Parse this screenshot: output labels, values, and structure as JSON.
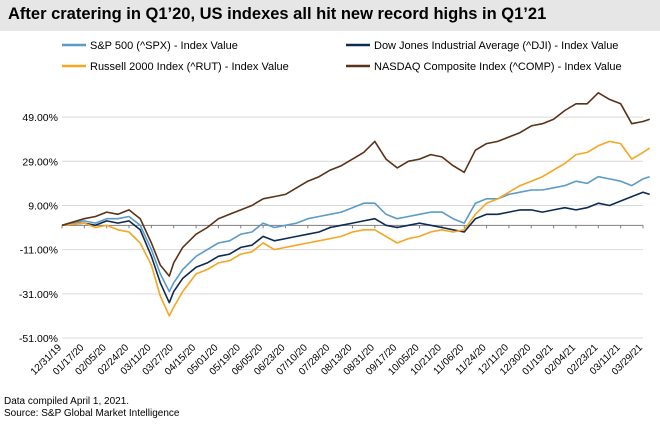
{
  "chart_data": {
    "type": "line",
    "title": "After cratering in Q1’20, US indexes all hit new record highs in Q1’21",
    "xlabel": "",
    "ylabel": "",
    "ylim": [
      -51,
      59
    ],
    "yticks": [
      -51,
      -31,
      -11,
      9,
      29,
      49
    ],
    "ytick_labels": [
      "-51.00%",
      "-31.00%",
      "-11.00%",
      "9.00%",
      "29.00%",
      "49.00%"
    ],
    "x_tick_labels": [
      "12/31/19",
      "01/17/20",
      "02/05/20",
      "02/24/20",
      "03/11/20",
      "03/27/20",
      "04/15/20",
      "05/01/20",
      "05/19/20",
      "06/05/20",
      "06/23/20",
      "07/10/20",
      "07/28/20",
      "08/13/20",
      "08/31/20",
      "09/17/20",
      "10/05/20",
      "10/21/20",
      "11/06/20",
      "11/24/20",
      "12/11/20",
      "12/30/20",
      "01/19/21",
      "02/04/21",
      "02/23/21",
      "03/11/21",
      "03/29/21"
    ],
    "grid": "horizontal",
    "legend_position": "top",
    "series": [
      {
        "name": "S&P 500 (^SPX) - Index Value",
        "color": "#5b9bc8",
        "values": [
          [
            0,
            0
          ],
          [
            1,
            2
          ],
          [
            1.5,
            1
          ],
          [
            2,
            3
          ],
          [
            2.5,
            3
          ],
          [
            3,
            4
          ],
          [
            3.5,
            0
          ],
          [
            4,
            -11
          ],
          [
            4.4,
            -22
          ],
          [
            4.8,
            -30
          ],
          [
            5,
            -26
          ],
          [
            5.4,
            -20
          ],
          [
            6,
            -14
          ],
          [
            6.5,
            -11
          ],
          [
            7,
            -8
          ],
          [
            7.5,
            -7
          ],
          [
            8,
            -4
          ],
          [
            8.5,
            -3
          ],
          [
            9,
            1
          ],
          [
            9.5,
            -1
          ],
          [
            10,
            0
          ],
          [
            10.5,
            1
          ],
          [
            11,
            3
          ],
          [
            11.5,
            4
          ],
          [
            12,
            5
          ],
          [
            12.5,
            6
          ],
          [
            13,
            8
          ],
          [
            13.5,
            10
          ],
          [
            14,
            10
          ],
          [
            14.5,
            5
          ],
          [
            15,
            3
          ],
          [
            15.5,
            4
          ],
          [
            16,
            5
          ],
          [
            16.5,
            6
          ],
          [
            17,
            6
          ],
          [
            17.5,
            3
          ],
          [
            18,
            1
          ],
          [
            18.5,
            10
          ],
          [
            19,
            12
          ],
          [
            19.5,
            12
          ],
          [
            20,
            14
          ],
          [
            20.5,
            15
          ],
          [
            21,
            16
          ],
          [
            21.5,
            16
          ],
          [
            22,
            17
          ],
          [
            22.5,
            18
          ],
          [
            23,
            20
          ],
          [
            23.5,
            19
          ],
          [
            24,
            22
          ],
          [
            24.5,
            21
          ],
          [
            25,
            20
          ],
          [
            25.5,
            18
          ],
          [
            26,
            21
          ],
          [
            26.3,
            22
          ]
        ]
      },
      {
        "name": "Dow Jones Industrial Average (^DJI) - Index Value",
        "color": "#0d2a52",
        "values": [
          [
            0,
            0
          ],
          [
            1,
            1
          ],
          [
            1.5,
            0
          ],
          [
            2,
            2
          ],
          [
            2.5,
            1
          ],
          [
            3,
            2
          ],
          [
            3.5,
            -2
          ],
          [
            4,
            -14
          ],
          [
            4.4,
            -26
          ],
          [
            4.8,
            -35
          ],
          [
            5,
            -30
          ],
          [
            5.4,
            -24
          ],
          [
            6,
            -19
          ],
          [
            6.5,
            -17
          ],
          [
            7,
            -14
          ],
          [
            7.5,
            -13
          ],
          [
            8,
            -10
          ],
          [
            8.5,
            -9
          ],
          [
            9,
            -5
          ],
          [
            9.5,
            -7
          ],
          [
            10,
            -6
          ],
          [
            10.5,
            -5
          ],
          [
            11,
            -4
          ],
          [
            11.5,
            -3
          ],
          [
            12,
            -1
          ],
          [
            12.5,
            0
          ],
          [
            13,
            1
          ],
          [
            13.5,
            2
          ],
          [
            14,
            3
          ],
          [
            14.5,
            0
          ],
          [
            15,
            -1
          ],
          [
            15.5,
            0
          ],
          [
            16,
            1
          ],
          [
            16.5,
            0
          ],
          [
            17,
            -1
          ],
          [
            17.5,
            -2
          ],
          [
            18,
            -3
          ],
          [
            18.5,
            3
          ],
          [
            19,
            5
          ],
          [
            19.5,
            5
          ],
          [
            20,
            6
          ],
          [
            20.5,
            7
          ],
          [
            21,
            7
          ],
          [
            21.5,
            6
          ],
          [
            22,
            7
          ],
          [
            22.5,
            8
          ],
          [
            23,
            7
          ],
          [
            23.5,
            8
          ],
          [
            24,
            10
          ],
          [
            24.5,
            9
          ],
          [
            25,
            11
          ],
          [
            25.5,
            13
          ],
          [
            26,
            15
          ],
          [
            26.3,
            14
          ]
        ]
      },
      {
        "name": "Russell 2000 Index (^RUT) - Index Value",
        "color": "#f5a623",
        "values": [
          [
            0,
            0
          ],
          [
            1,
            1
          ],
          [
            1.5,
            -1
          ],
          [
            2,
            0
          ],
          [
            2.5,
            -2
          ],
          [
            3,
            -3
          ],
          [
            3.5,
            -8
          ],
          [
            4,
            -18
          ],
          [
            4.4,
            -32
          ],
          [
            4.8,
            -41
          ],
          [
            5,
            -37
          ],
          [
            5.4,
            -30
          ],
          [
            6,
            -22
          ],
          [
            6.5,
            -20
          ],
          [
            7,
            -17
          ],
          [
            7.5,
            -16
          ],
          [
            8,
            -13
          ],
          [
            8.5,
            -12
          ],
          [
            9,
            -8
          ],
          [
            9.5,
            -11
          ],
          [
            10,
            -10
          ],
          [
            10.5,
            -9
          ],
          [
            11,
            -8
          ],
          [
            11.5,
            -7
          ],
          [
            12,
            -6
          ],
          [
            12.5,
            -5
          ],
          [
            13,
            -3
          ],
          [
            13.5,
            -2
          ],
          [
            14,
            -2
          ],
          [
            14.5,
            -5
          ],
          [
            15,
            -8
          ],
          [
            15.5,
            -6
          ],
          [
            16,
            -5
          ],
          [
            16.5,
            -3
          ],
          [
            17,
            -2
          ],
          [
            17.5,
            -3
          ],
          [
            18,
            -2
          ],
          [
            18.5,
            5
          ],
          [
            19,
            10
          ],
          [
            19.5,
            12
          ],
          [
            20,
            15
          ],
          [
            20.5,
            18
          ],
          [
            21,
            20
          ],
          [
            21.5,
            22
          ],
          [
            22,
            25
          ],
          [
            22.5,
            28
          ],
          [
            23,
            32
          ],
          [
            23.5,
            33
          ],
          [
            24,
            36
          ],
          [
            24.5,
            38
          ],
          [
            25,
            37
          ],
          [
            25.5,
            30
          ],
          [
            26,
            33
          ],
          [
            26.3,
            35
          ]
        ]
      },
      {
        "name": "NASDAQ Composite Index (^COMP) - Index Value",
        "color": "#5a3219",
        "values": [
          [
            0,
            0
          ],
          [
            1,
            3
          ],
          [
            1.5,
            4
          ],
          [
            2,
            6
          ],
          [
            2.5,
            5
          ],
          [
            3,
            7
          ],
          [
            3.5,
            3
          ],
          [
            4,
            -8
          ],
          [
            4.4,
            -18
          ],
          [
            4.8,
            -23
          ],
          [
            5,
            -17
          ],
          [
            5.4,
            -10
          ],
          [
            6,
            -4
          ],
          [
            6.5,
            -1
          ],
          [
            7,
            3
          ],
          [
            7.5,
            5
          ],
          [
            8,
            7
          ],
          [
            8.5,
            9
          ],
          [
            9,
            12
          ],
          [
            9.5,
            13
          ],
          [
            10,
            14
          ],
          [
            10.5,
            17
          ],
          [
            11,
            20
          ],
          [
            11.5,
            22
          ],
          [
            12,
            25
          ],
          [
            12.5,
            27
          ],
          [
            13,
            30
          ],
          [
            13.5,
            33
          ],
          [
            14,
            38
          ],
          [
            14.5,
            30
          ],
          [
            15,
            26
          ],
          [
            15.5,
            29
          ],
          [
            16,
            30
          ],
          [
            16.5,
            32
          ],
          [
            17,
            31
          ],
          [
            17.5,
            27
          ],
          [
            18,
            24
          ],
          [
            18.5,
            34
          ],
          [
            19,
            37
          ],
          [
            19.5,
            38
          ],
          [
            20,
            40
          ],
          [
            20.5,
            42
          ],
          [
            21,
            45
          ],
          [
            21.5,
            46
          ],
          [
            22,
            48
          ],
          [
            22.5,
            52
          ],
          [
            23,
            55
          ],
          [
            23.5,
            55
          ],
          [
            24,
            60
          ],
          [
            24.5,
            57
          ],
          [
            25,
            55
          ],
          [
            25.5,
            46
          ],
          [
            26,
            47
          ],
          [
            26.3,
            48
          ]
        ]
      }
    ]
  },
  "footer": {
    "line1": "Data compiled April 1, 2021.",
    "line2": "Source: S&P Global Market Intelligence"
  }
}
